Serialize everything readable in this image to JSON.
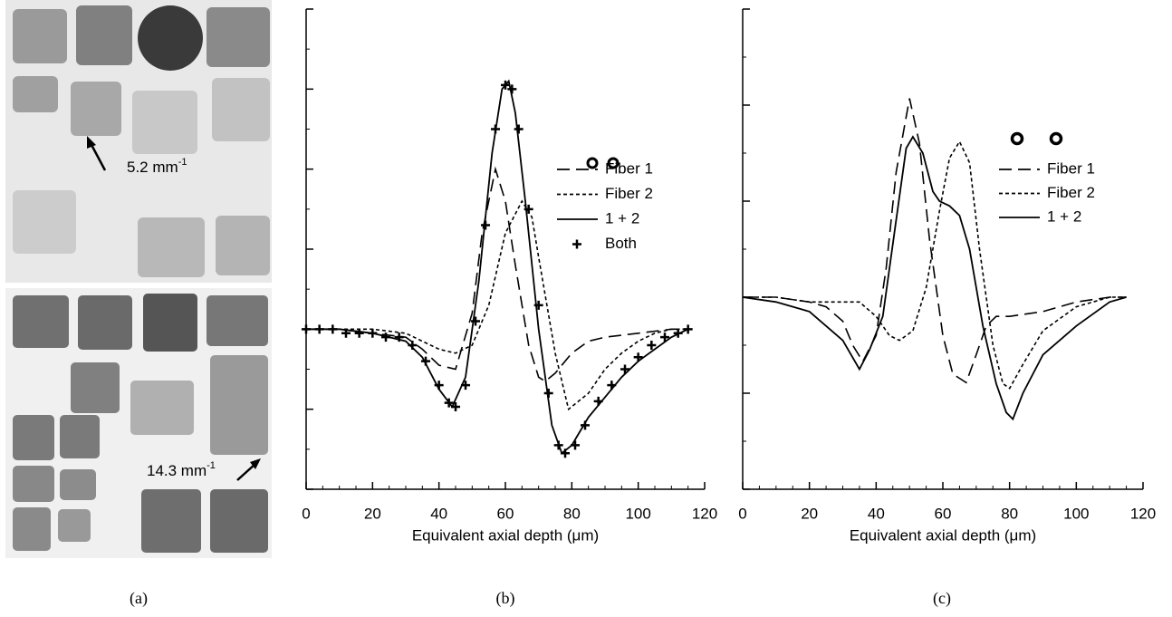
{
  "panel_labels": [
    "(a)",
    "(b)",
    "(c)"
  ],
  "image_annotations": [
    {
      "text": "5.2 mm",
      "sup": "-1"
    },
    {
      "text": "14.3 mm",
      "sup": "-1"
    }
  ],
  "chart_data": [
    {
      "type": "line",
      "x_label": "Equivalent axial depth (μm)",
      "xlim": [
        0,
        120
      ],
      "xticks": [
        0,
        20,
        40,
        60,
        80,
        100,
        120
      ],
      "ylim": [
        -2,
        4
      ],
      "yticks": [
        -2,
        -1,
        0,
        1,
        2,
        3,
        4
      ],
      "series": [
        {
          "name": "Fiber 1",
          "color": "#000000",
          "line_style": "long-dash",
          "x": [
            0,
            10,
            20,
            30,
            35,
            40,
            45,
            50,
            53,
            57,
            60,
            63,
            67,
            70,
            72,
            75,
            80,
            85,
            90,
            100,
            110,
            115
          ],
          "values": [
            0,
            0,
            -0.05,
            -0.1,
            -0.25,
            -0.45,
            -0.5,
            0.2,
            1.2,
            2.0,
            1.6,
            0.8,
            -0.2,
            -0.6,
            -0.65,
            -0.55,
            -0.3,
            -0.15,
            -0.1,
            -0.05,
            0,
            0
          ]
        },
        {
          "name": "Fiber 2",
          "color": "#000000",
          "line_style": "short-dash",
          "x": [
            0,
            10,
            20,
            30,
            35,
            40,
            45,
            50,
            55,
            60,
            65,
            68,
            70,
            75,
            79,
            85,
            90,
            95,
            100,
            105,
            110,
            115
          ],
          "values": [
            0,
            0,
            0,
            -0.05,
            -0.15,
            -0.25,
            -0.3,
            -0.2,
            0.3,
            1.2,
            1.6,
            1.4,
            0.9,
            -0.3,
            -1.0,
            -0.8,
            -0.5,
            -0.3,
            -0.15,
            -0.05,
            0,
            0
          ]
        },
        {
          "name": "1 + 2",
          "color": "#000000",
          "line_style": "solid",
          "x": [
            0,
            10,
            20,
            30,
            35,
            40,
            44,
            48,
            52,
            56,
            59,
            61,
            63,
            66,
            70,
            74,
            77,
            80,
            85,
            90,
            95,
            100,
            105,
            110,
            115
          ],
          "values": [
            0,
            0,
            -0.05,
            -0.15,
            -0.35,
            -0.75,
            -0.97,
            -0.6,
            0.6,
            2.2,
            3.0,
            3.1,
            2.7,
            1.6,
            0,
            -1.2,
            -1.55,
            -1.45,
            -1.1,
            -0.85,
            -0.6,
            -0.4,
            -0.25,
            -0.1,
            0
          ]
        },
        {
          "name": "Both",
          "color": "#000000",
          "line_style": "markers",
          "x": [
            0,
            4,
            8,
            12,
            16,
            20,
            24,
            28,
            32,
            36,
            40,
            43,
            45,
            48,
            51,
            54,
            57,
            60,
            62,
            64,
            67,
            70,
            73,
            76,
            78,
            81,
            84,
            88,
            92,
            96,
            100,
            104,
            108,
            112,
            115
          ],
          "values": [
            0,
            0,
            0,
            -0.05,
            -0.05,
            -0.05,
            -0.1,
            -0.1,
            -0.2,
            -0.4,
            -0.7,
            -0.92,
            -0.97,
            -0.7,
            0.1,
            1.3,
            2.5,
            3.05,
            3.0,
            2.5,
            1.5,
            0.3,
            -0.8,
            -1.45,
            -1.55,
            -1.45,
            -1.2,
            -0.9,
            -0.7,
            -0.5,
            -0.35,
            -0.2,
            -0.1,
            -0.05,
            0
          ]
        }
      ]
    },
    {
      "type": "line",
      "x_label": "Equivalent axial depth (μm)",
      "xlim": [
        0,
        120
      ],
      "xticks": [
        0,
        20,
        40,
        60,
        80,
        100,
        120
      ],
      "ylim": [
        -2,
        3
      ],
      "yticks": [
        -2,
        -1,
        0,
        1,
        2,
        3
      ],
      "series": [
        {
          "name": "Fiber 1",
          "color": "#000000",
          "line_style": "long-dash",
          "x": [
            0,
            10,
            20,
            25,
            30,
            33,
            36,
            40,
            43,
            46,
            50,
            53,
            56,
            60,
            63,
            67,
            70,
            73,
            76,
            80,
            90,
            100,
            110,
            115
          ],
          "values": [
            0,
            0,
            -0.05,
            -0.1,
            -0.25,
            -0.5,
            -0.67,
            -0.4,
            0.3,
            1.3,
            2.07,
            1.6,
            0.6,
            -0.4,
            -0.8,
            -0.89,
            -0.6,
            -0.3,
            -0.2,
            -0.2,
            -0.15,
            -0.05,
            0,
            0
          ]
        },
        {
          "name": "Fiber 2",
          "color": "#000000",
          "line_style": "short-dash",
          "x": [
            0,
            10,
            20,
            30,
            35,
            40,
            44,
            47,
            51,
            55,
            59,
            62,
            65,
            68,
            71,
            75,
            78,
            80,
            84,
            90,
            100,
            110,
            115
          ],
          "values": [
            0,
            0,
            -0.05,
            -0.05,
            -0.05,
            -0.2,
            -0.4,
            -0.45,
            -0.35,
            0.1,
            0.9,
            1.45,
            1.62,
            1.4,
            0.5,
            -0.5,
            -0.9,
            -0.95,
            -0.7,
            -0.35,
            -0.1,
            0,
            0
          ]
        },
        {
          "name": "1 + 2",
          "color": "#000000",
          "line_style": "solid",
          "x": [
            0,
            10,
            20,
            25,
            30,
            35,
            38,
            42,
            46,
            49,
            51,
            54,
            57,
            59,
            62,
            65,
            68,
            72,
            76,
            79,
            81,
            84,
            90,
            100,
            110,
            115
          ],
          "values": [
            0,
            -0.05,
            -0.15,
            -0.3,
            -0.45,
            -0.75,
            -0.55,
            -0.2,
            0.8,
            1.55,
            1.67,
            1.5,
            1.1,
            1.0,
            0.95,
            0.85,
            0.5,
            -0.3,
            -0.9,
            -1.2,
            -1.27,
            -1.0,
            -0.6,
            -0.3,
            -0.05,
            0
          ]
        }
      ]
    }
  ]
}
